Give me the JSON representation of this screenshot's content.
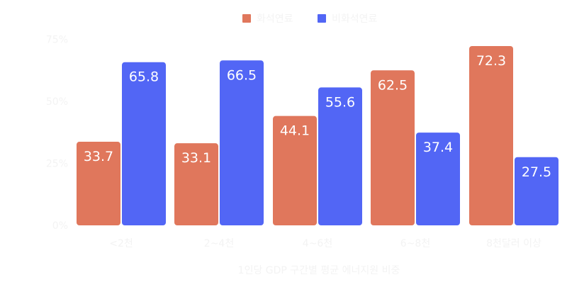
{
  "chart_data": {
    "type": "bar",
    "title": "1인당 GDP 구간별 평균 에너지원 비중",
    "categories": [
      "<2천",
      "2~4천",
      "4~6천",
      "6~8천",
      "8천달러 이상"
    ],
    "series": [
      {
        "name": "화석연료",
        "color": "#e0775c",
        "values": [
          33.7,
          33.1,
          44.1,
          62.5,
          72.3
        ]
      },
      {
        "name": "비화석연료",
        "color": "#5266f5",
        "values": [
          65.8,
          66.5,
          55.6,
          37.4,
          27.5
        ]
      }
    ],
    "yticks": [
      "0%",
      "25%",
      "50%",
      "75%"
    ],
    "ylim": [
      0,
      75
    ],
    "legend": "top-center"
  }
}
